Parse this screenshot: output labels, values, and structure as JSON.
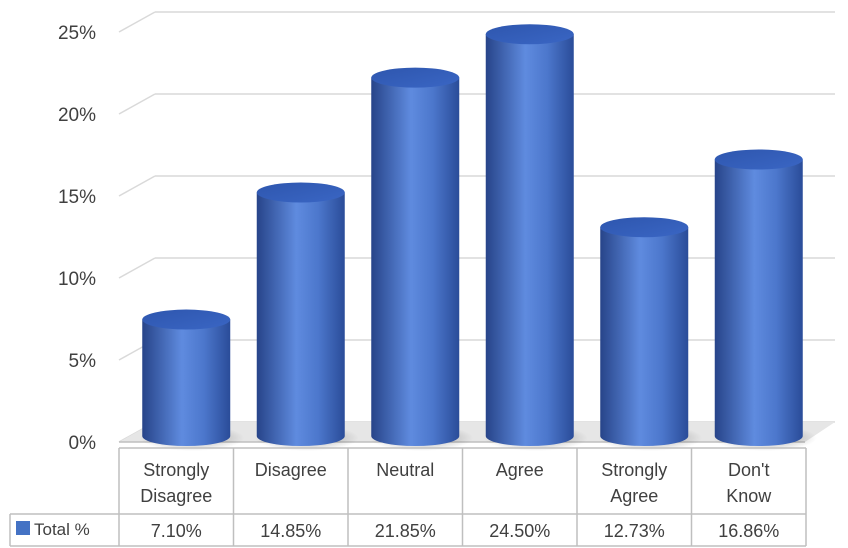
{
  "chart_data": {
    "type": "bar",
    "categories": [
      [
        "Strongly",
        "Disagree"
      ],
      [
        "Disagree"
      ],
      [
        "Neutral"
      ],
      [
        "Agree"
      ],
      [
        "Strongly",
        "Agree"
      ],
      [
        "Don't",
        "Know"
      ]
    ],
    "series": [
      {
        "name": "Total %",
        "values": [
          7.1,
          14.85,
          21.85,
          24.5,
          12.73,
          16.86
        ],
        "labels": [
          "7.10%",
          "14.85%",
          "21.85%",
          "24.50%",
          "12.73%",
          "16.86%"
        ]
      }
    ],
    "ylim": [
      0,
      25
    ],
    "yticks": [
      "0%",
      "5%",
      "10%",
      "15%",
      "20%",
      "25%"
    ],
    "grid": true,
    "data_table": true,
    "bar_style": "3d-cylinder",
    "colors": {
      "bar": "#4472C4",
      "bar_dark": "#2F4E96",
      "bar_light": "#7FA3E8",
      "grid": "#D9D9D9",
      "table_border": "#BFBFBF"
    }
  }
}
